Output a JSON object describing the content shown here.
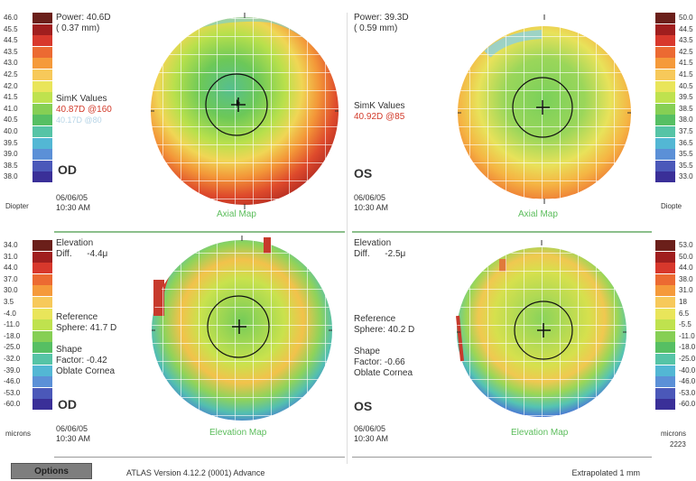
{
  "scale_colors": [
    "#6b1f1a",
    "#a01e1e",
    "#d8382c",
    "#ec6a32",
    "#f59a3a",
    "#f7c95a",
    "#e9e55a",
    "#bfe24e",
    "#86cf54",
    "#56bf63",
    "#56c4a6",
    "#53b7d4",
    "#5b90d7",
    "#4b58b9",
    "#3a2f98"
  ],
  "scale_axial_left": [
    "46.0",
    "45.5",
    "44.5",
    "43.5",
    "43.0",
    "42.5",
    "42.0",
    "41.5",
    "41.0",
    "40.5",
    "40.0",
    "39.5",
    "39.0",
    "38.5",
    "38.0"
  ],
  "scale_axial_right": [
    "50.0",
    "44.5",
    "43.5",
    "42.5",
    "41.5",
    "41.5",
    "40.5",
    "39.5",
    "38.5",
    "38.0",
    "37.5",
    "36.5",
    "35.5",
    "35.5",
    "33.0"
  ],
  "scale_elev_left": [
    "34.0",
    "31.0",
    "44.0",
    "37.0",
    "30.0",
    "3.5",
    "-4.0",
    "-11.0",
    "-18.0",
    "-25.0",
    "-32.0",
    "-39.0",
    "-46.0",
    "-53.0",
    "-60.0"
  ],
  "scale_elev_right": [
    "53.0",
    "50.0",
    "44.0",
    "38.0",
    "31.0",
    "18",
    "6.5",
    "-5.5",
    "-11.0",
    "-18.0",
    "-25.0",
    "-40.0",
    "-46.0",
    "-53.0",
    "-60.0"
  ],
  "units": {
    "left_top": "Diopter",
    "right_top": "Diopte",
    "left_bottom": "microns",
    "right_bottom": "microns"
  },
  "panels": {
    "od_axial": {
      "power_label": "Power:",
      "power_value": "40.6D",
      "mm": "( 0.37 mm)",
      "simk_label": "SimK Values",
      "simk_value": "40.87D @160",
      "simk_faint": "40.17D @80",
      "eye": "OD",
      "date": "06/06/05",
      "time": "10:30 AM",
      "map": "Axial Map"
    },
    "os_axial": {
      "power_label": "Power:",
      "power_value": "39.3D",
      "mm": "( 0.59 mm)",
      "simk_label": "SimK Values",
      "simk_value": "40.92D @85",
      "eye": "OS",
      "date": "06/06/05",
      "time": "10:30 AM",
      "map": "Axial Map"
    },
    "od_elev": {
      "title": "Elevation",
      "diff_label": "Diff.",
      "diff_value": "-4.4μ",
      "ref_label": "Reference",
      "sphere_label": "Sphere: 41.7 D",
      "shape_label": "Shape",
      "factor_label": "Factor: -0.42",
      "oblate": "Oblate Cornea",
      "eye": "OD",
      "date": "06/06/05",
      "time": "10:30 AM",
      "map": "Elevation Map"
    },
    "os_elev": {
      "title": "Elevation",
      "diff_label": "Diff.",
      "diff_value": "-2.5μ",
      "ref_label": "Reference",
      "sphere_label": "Sphere: 40.2 D",
      "shape_label": "Shape",
      "factor_label": "Factor: -0.66",
      "oblate": "Oblate Cornea",
      "eye": "OS",
      "date": "06/06/05",
      "time": "10:30 AM",
      "map": "Elevation Map"
    }
  },
  "bottom": {
    "options_button": "Options",
    "version": "ATLAS  Version 4.12.2 (0001)  Advance",
    "right_status": "Extrapolated 1 mm",
    "corner": "2223"
  }
}
